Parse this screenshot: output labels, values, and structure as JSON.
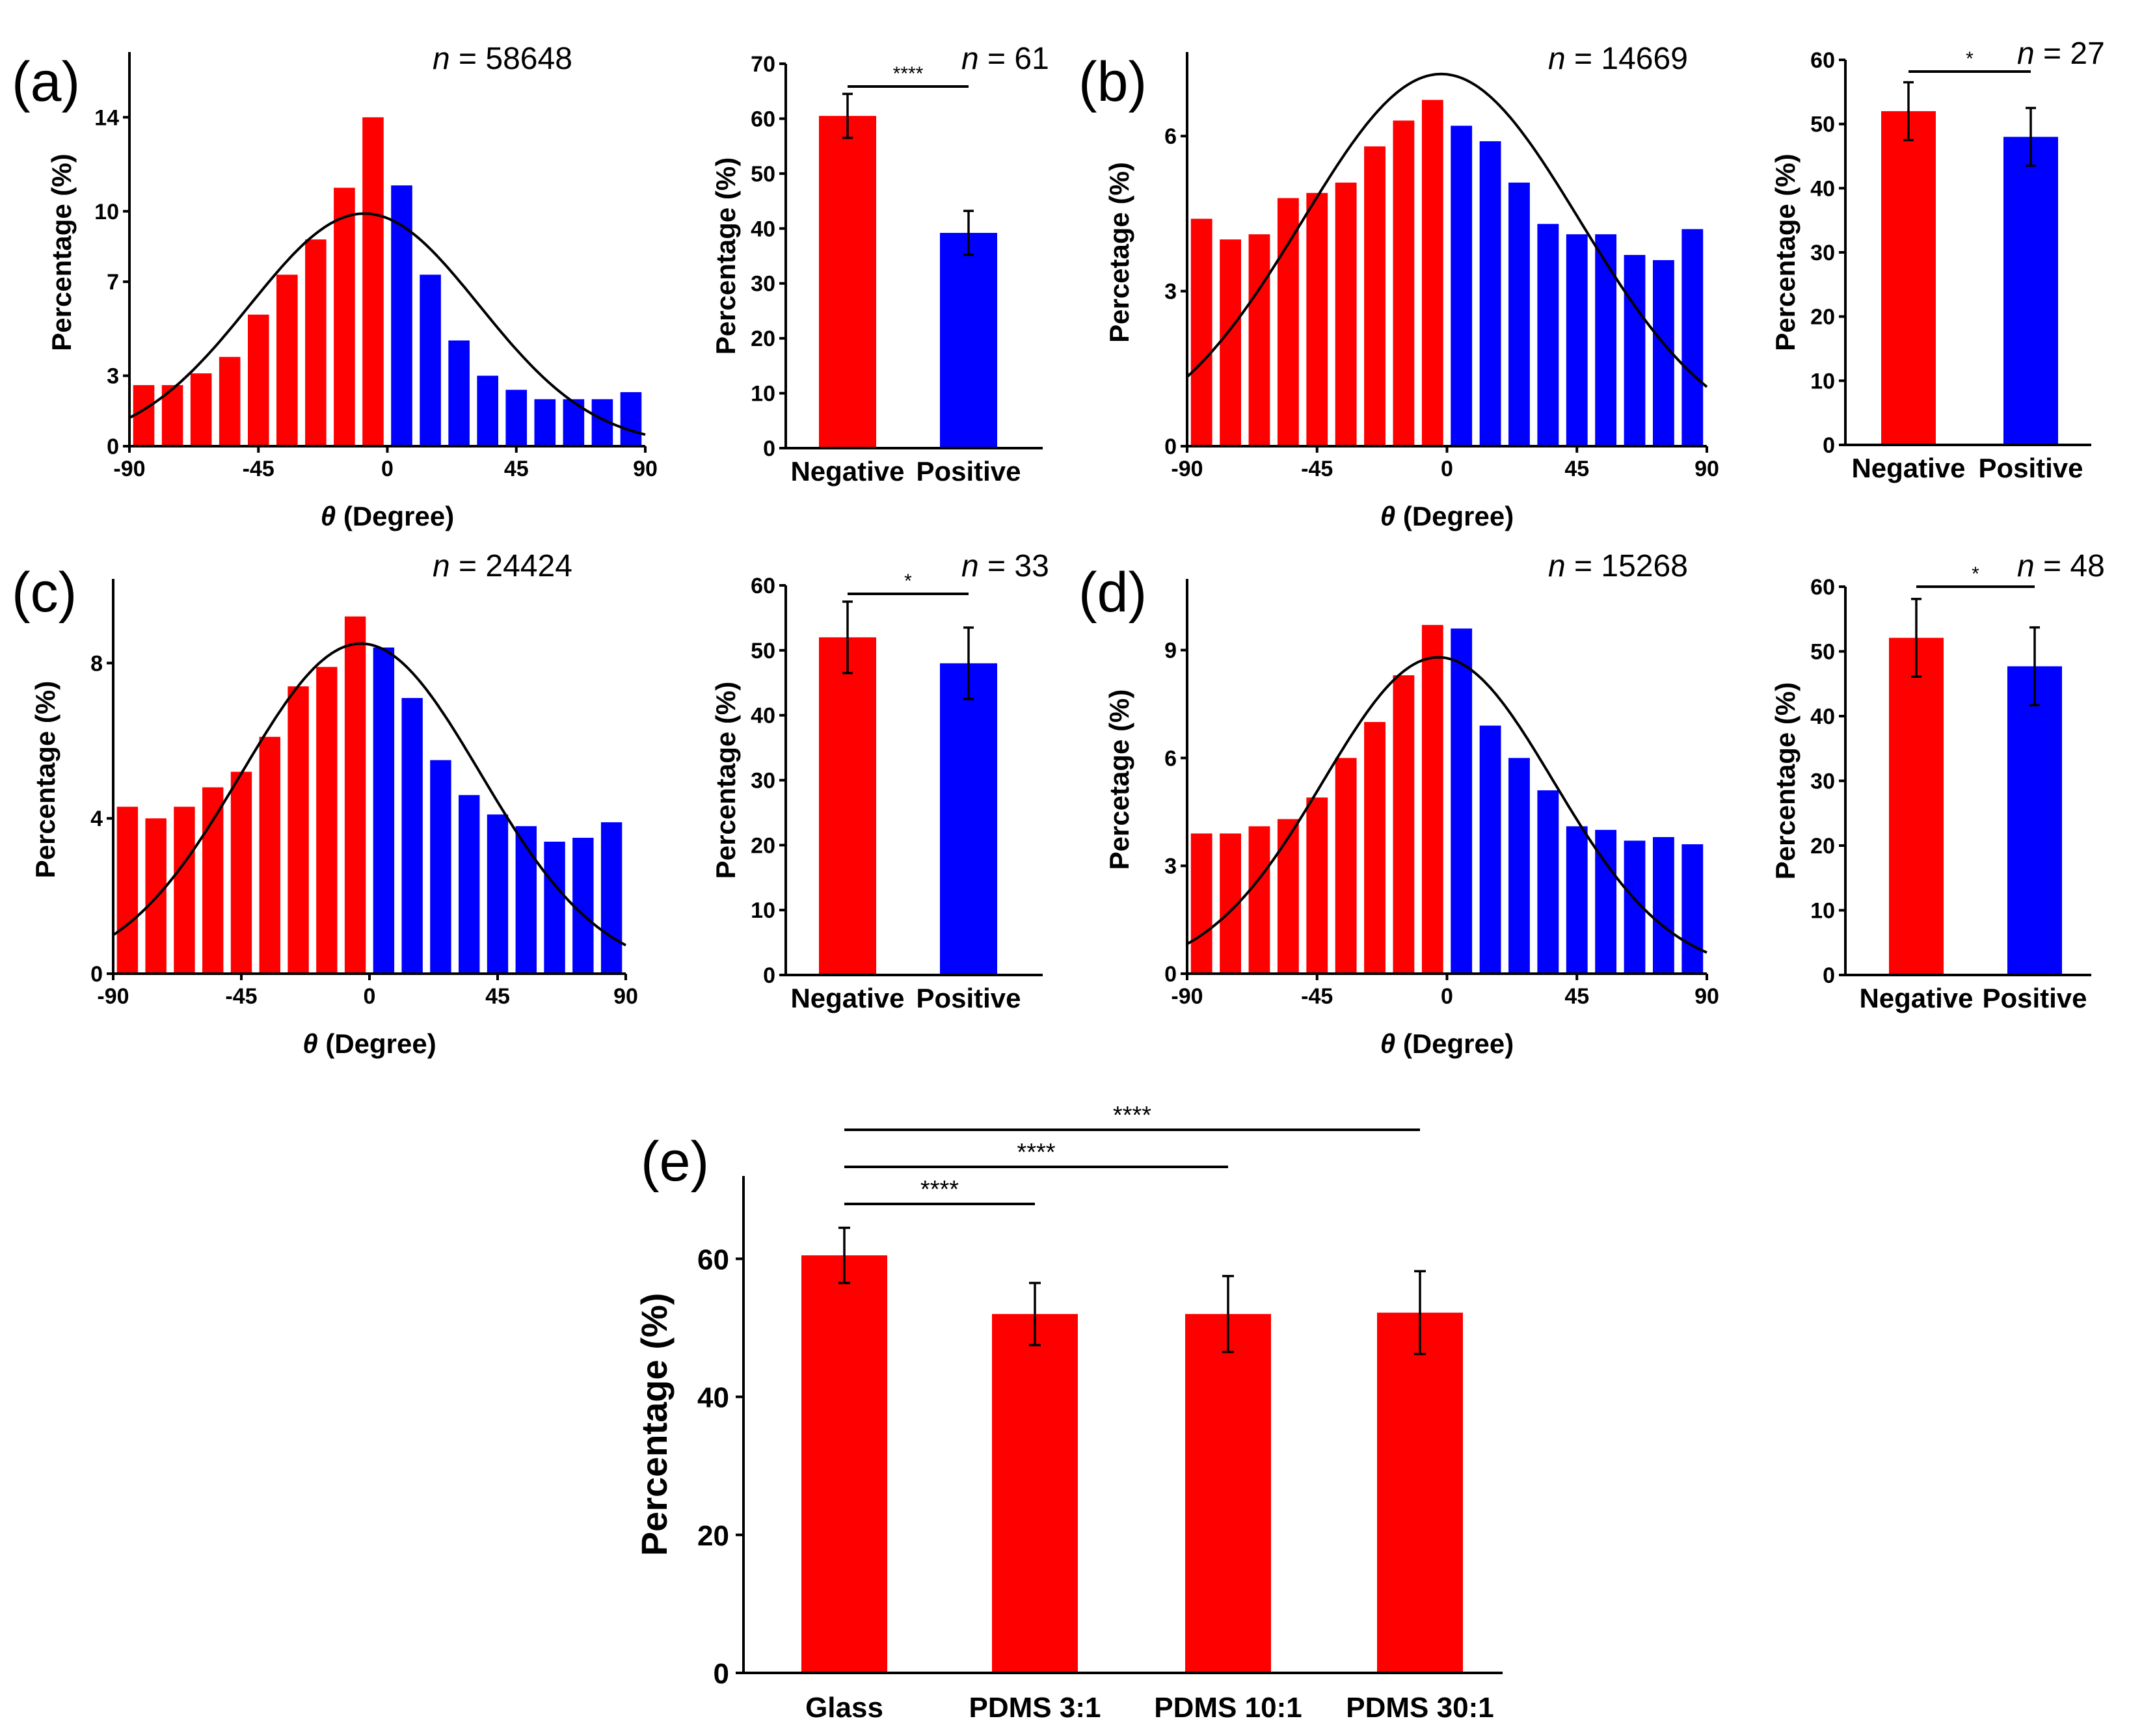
{
  "chart_data": [
    {
      "id": "a-hist",
      "type": "bar",
      "panel_label": "(a)",
      "n_label": "n = 58648",
      "n_var": "n",
      "n_rest": " = 58648",
      "xlabel_var": "θ",
      "xlabel": " (Degree)",
      "ylabel": "Percentage (%)",
      "xlim": [
        -90,
        90
      ],
      "ylim": [
        0,
        16.5
      ],
      "xticks": [
        -90,
        -45,
        0,
        45,
        90
      ],
      "yticks": [
        0,
        3,
        7,
        10,
        14
      ],
      "x": [
        -85,
        -75,
        -65,
        -55,
        -45,
        -35,
        -25,
        -15,
        -5,
        5,
        15,
        25,
        35,
        45,
        55,
        65,
        75,
        85
      ],
      "values": [
        2.6,
        2.6,
        3.1,
        3.8,
        5.6,
        7.3,
        8.8,
        11.0,
        14.0,
        11.1,
        7.3,
        4.5,
        3.0,
        2.4,
        2.0,
        2.0,
        2.0,
        2.3
      ],
      "fit": {
        "A": 9.9,
        "mu": -8,
        "sigma": 40
      }
    },
    {
      "id": "a-bar",
      "type": "bar",
      "n_label": "n = 61",
      "n_var": "n",
      "n_rest": " = 61",
      "ylabel": "Percentage (%)",
      "ylim": [
        0,
        70
      ],
      "yticks": [
        0,
        10,
        20,
        30,
        40,
        50,
        60,
        70
      ],
      "categories": [
        "Negative",
        "Positive"
      ],
      "values": [
        60.5,
        39.2
      ],
      "errors": [
        4.0,
        4.0
      ],
      "significance": "****"
    },
    {
      "id": "b-hist",
      "type": "bar",
      "panel_label": "(b)",
      "n_label": "n = 14669",
      "n_var": "n",
      "n_rest": " = 14669",
      "xlabel_var": "θ",
      "xlabel": " (Degree)",
      "ylabel": "Percetage (%)",
      "xlim": [
        -90,
        90
      ],
      "ylim": [
        0,
        7.5
      ],
      "xticks": [
        -90,
        -45,
        0,
        45,
        90
      ],
      "yticks": [
        0,
        3,
        6
      ],
      "x": [
        -85,
        -75,
        -65,
        -55,
        -45,
        -35,
        -25,
        -15,
        -5,
        5,
        15,
        25,
        35,
        45,
        55,
        65,
        75,
        85
      ],
      "values": [
        4.4,
        4.0,
        4.1,
        4.8,
        4.9,
        5.1,
        5.8,
        6.3,
        6.7,
        6.2,
        5.9,
        5.1,
        4.3,
        4.1,
        4.1,
        3.7,
        3.6,
        4.2
      ],
      "fit": {
        "A": 7.2,
        "mu": -2,
        "sigma": 48
      }
    },
    {
      "id": "b-bar",
      "type": "bar",
      "n_label": "n = 27",
      "n_var": "n",
      "n_rest": " = 27",
      "ylabel": "Percentage (%)",
      "ylim": [
        0,
        60
      ],
      "yticks": [
        0,
        10,
        20,
        30,
        40,
        50,
        60
      ],
      "categories": [
        "Negative",
        "Positive"
      ],
      "values": [
        52.0,
        48.0
      ],
      "errors": [
        4.5,
        4.5
      ],
      "significance": "*"
    },
    {
      "id": "c-hist",
      "type": "bar",
      "panel_label": "(c)",
      "n_label": "n = 24424",
      "n_var": "n",
      "n_rest": " = 24424",
      "xlabel_var": "θ",
      "xlabel": " (Degree)",
      "ylabel": "Percentage (%)",
      "xlim": [
        -90,
        90
      ],
      "ylim": [
        0,
        10
      ],
      "xticks": [
        -90,
        -45,
        0,
        45,
        90
      ],
      "yticks": [
        0,
        4,
        8
      ],
      "x": [
        -85,
        -75,
        -65,
        -55,
        -45,
        -35,
        -25,
        -15,
        -5,
        5,
        15,
        25,
        35,
        45,
        55,
        65,
        75,
        85
      ],
      "values": [
        4.3,
        4.0,
        4.3,
        4.8,
        5.2,
        6.1,
        7.4,
        7.9,
        9.2,
        8.4,
        7.1,
        5.5,
        4.6,
        4.1,
        3.8,
        3.4,
        3.5,
        3.9
      ],
      "fit": {
        "A": 8.5,
        "mu": -3,
        "sigma": 42
      }
    },
    {
      "id": "c-bar",
      "type": "bar",
      "n_label": "n = 33",
      "n_var": "n",
      "n_rest": " = 33",
      "ylabel": "Percentage (%)",
      "ylim": [
        0,
        60
      ],
      "yticks": [
        0,
        10,
        20,
        30,
        40,
        50,
        60
      ],
      "categories": [
        "Negative",
        "Positive"
      ],
      "values": [
        52.0,
        48.0
      ],
      "errors": [
        5.5,
        5.5
      ],
      "significance": "*"
    },
    {
      "id": "d-hist",
      "type": "bar",
      "panel_label": "(d)",
      "n_label": "n = 15268",
      "n_var": "n",
      "n_rest": " = 15268",
      "xlabel_var": "θ",
      "xlabel": " (Degree)",
      "ylabel": "Percetage (%)",
      "xlim": [
        -90,
        90
      ],
      "ylim": [
        0,
        10.8
      ],
      "xticks": [
        -90,
        -45,
        0,
        45,
        90
      ],
      "yticks": [
        0,
        3,
        6,
        9
      ],
      "x": [
        -85,
        -75,
        -65,
        -55,
        -45,
        -35,
        -25,
        -15,
        -5,
        5,
        15,
        25,
        35,
        45,
        55,
        65,
        75,
        85
      ],
      "values": [
        3.9,
        3.9,
        4.1,
        4.3,
        4.9,
        6.0,
        7.0,
        8.3,
        9.7,
        9.6,
        6.9,
        6.0,
        5.1,
        4.1,
        4.0,
        3.7,
        3.8,
        3.6
      ],
      "fit": {
        "A": 8.8,
        "mu": -3,
        "sigma": 40
      }
    },
    {
      "id": "d-bar",
      "type": "bar",
      "n_label": "n = 48",
      "n_var": "n",
      "n_rest": " = 48",
      "ylabel": "Percentage (%)",
      "ylim": [
        0,
        60
      ],
      "yticks": [
        0,
        10,
        20,
        30,
        40,
        50,
        60
      ],
      "categories": [
        "Negative",
        "Positive"
      ],
      "values": [
        52.1,
        47.7
      ],
      "errors": [
        6.0,
        6.0
      ],
      "significance": "*"
    },
    {
      "id": "e-bar",
      "type": "bar",
      "panel_label": "(e)",
      "ylabel": "Percentage (%)",
      "ylim": [
        0,
        72
      ],
      "yticks": [
        0,
        20,
        40,
        60
      ],
      "categories": [
        "Glass",
        "PDMS 3:1",
        "PDMS 10:1",
        "PDMS 30:1"
      ],
      "values": [
        60.5,
        52.0,
        52.0,
        52.2
      ],
      "errors": [
        4.0,
        4.5,
        5.5,
        6.0
      ],
      "significance": [
        "****",
        "****",
        "****"
      ]
    }
  ],
  "colors": {
    "negative": "#ff0000",
    "positive": "#0000ff"
  }
}
